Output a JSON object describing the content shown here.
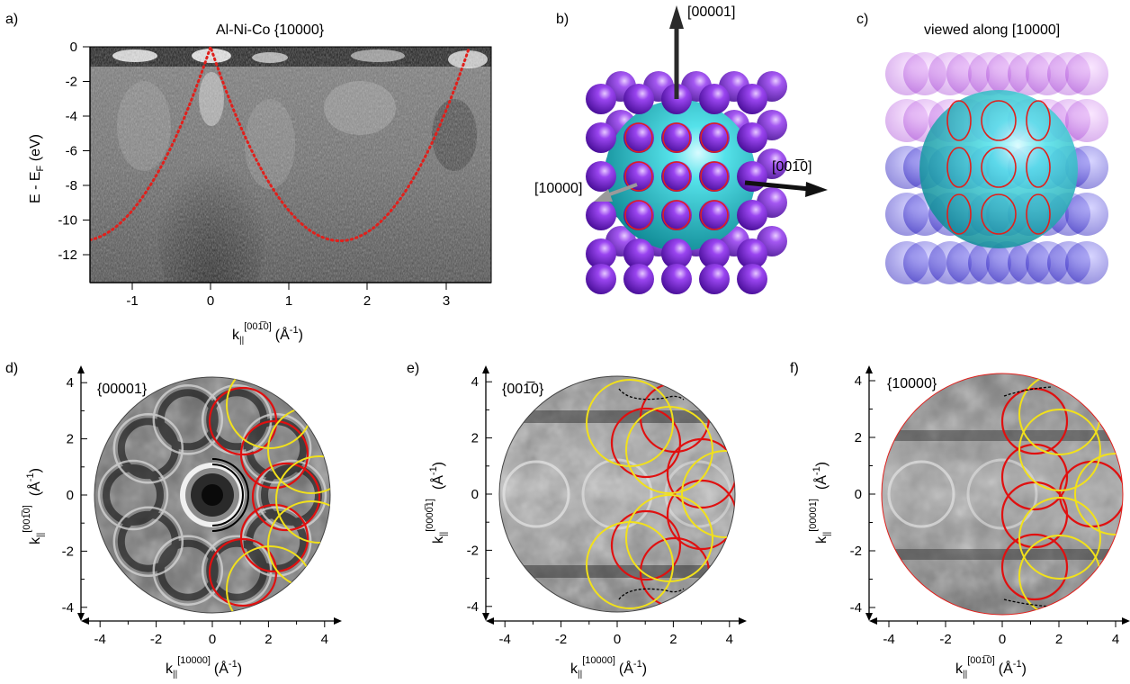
{
  "panels": {
    "a": {
      "label": "a)",
      "title": "Al-Ni-Co {10000}",
      "xlabel_main": "k",
      "xlabel_sub": "||",
      "xlabel_sup": "[001̅0]",
      "xlabel_unit": "(Å",
      "xlabel_unit_sup": "-1",
      "xlabel_close": ")",
      "ylabel": "E - E",
      "ylabel_sub": "F",
      "ylabel_unit": " (eV)"
    },
    "b": {
      "label": "b)",
      "axis_up": "[00001]",
      "axis_left": "[10000]",
      "axis_right": "[001̅0]"
    },
    "c": {
      "label": "c)",
      "title": "viewed along [10000]"
    },
    "d": {
      "label": "d)",
      "plane": "{00001}",
      "xlabel_main": "k",
      "xlabel_sub": "||",
      "xlabel_sup": "[10000]",
      "ylabel_main": "k",
      "ylabel_sub": "||",
      "ylabel_sup": "[001̅0]",
      "unit": "(Å",
      "unit_sup": "-1",
      "unit_close": ")"
    },
    "e": {
      "label": "e)",
      "plane": "{001̅0}",
      "xlabel_main": "k",
      "xlabel_sub": "||",
      "xlabel_sup": "[10000]",
      "ylabel_main": "k",
      "ylabel_sub": "||",
      "ylabel_sup": "[0000̅1]",
      "unit": "(Å",
      "unit_sup": "-1",
      "unit_close": ")"
    },
    "f": {
      "label": "f)",
      "plane": "{10000}",
      "xlabel_main": "k",
      "xlabel_sub": "||",
      "xlabel_sup": "[001̅0]",
      "ylabel_main": "k",
      "ylabel_sub": "||",
      "ylabel_sup": "[00001]",
      "unit": "(Å",
      "unit_sup": "-1",
      "unit_close": ")"
    }
  },
  "ticks": {
    "a_x": [
      "-1",
      "0",
      "1",
      "2",
      "3"
    ],
    "a_y": [
      "0",
      "-2",
      "-4",
      "-6",
      "-8",
      "-10",
      "-12"
    ],
    "map_x": [
      "-4",
      "-2",
      "0",
      "2",
      "4"
    ],
    "map_y": [
      "4",
      "2",
      "0",
      "-2",
      "-4"
    ]
  },
  "colors": {
    "free_electron_parabola": "#e0201c",
    "fermi_circle": "#e01010",
    "umklapp_circle": "#f2e11a",
    "atom": "#7b2fd6",
    "fermi_sphere": "#2fd0d6"
  },
  "chart_data": [
    {
      "type": "heatmap",
      "title": "Al-Ni-Co {10000}",
      "xlabel": "k||[001̅0] (Å-1)",
      "ylabel": "E - EF (eV)",
      "xlim": [
        -1.55,
        3.55
      ],
      "ylim": [
        -13.5,
        0.5
      ],
      "overlay": "dotted free-electron parabolas with minima at k = 0 and k = 1.65, reaching EF at k = 0 and k = 3.25"
    },
    {
      "type": "heatmap",
      "title": "{00001}",
      "xlabel": "k||[10000] (Å-1)",
      "ylabel": "k||[001̅0] (Å-1)",
      "xlim": [
        -4.4,
        4.4
      ],
      "ylim": [
        -4.4,
        4.4
      ]
    },
    {
      "type": "heatmap",
      "title": "{001̅0}",
      "xlabel": "k||[10000] (Å-1)",
      "ylabel": "k||[0000̅1] (Å-1)",
      "xlim": [
        -4.4,
        4.4
      ],
      "ylim": [
        -4.4,
        4.4
      ]
    },
    {
      "type": "heatmap",
      "title": "{10000}",
      "xlabel": "k||[001̅0] (Å-1)",
      "ylabel": "k||[00001] (Å-1)",
      "xlim": [
        -4.4,
        4.4
      ],
      "ylim": [
        -4.4,
        4.4
      ]
    }
  ]
}
